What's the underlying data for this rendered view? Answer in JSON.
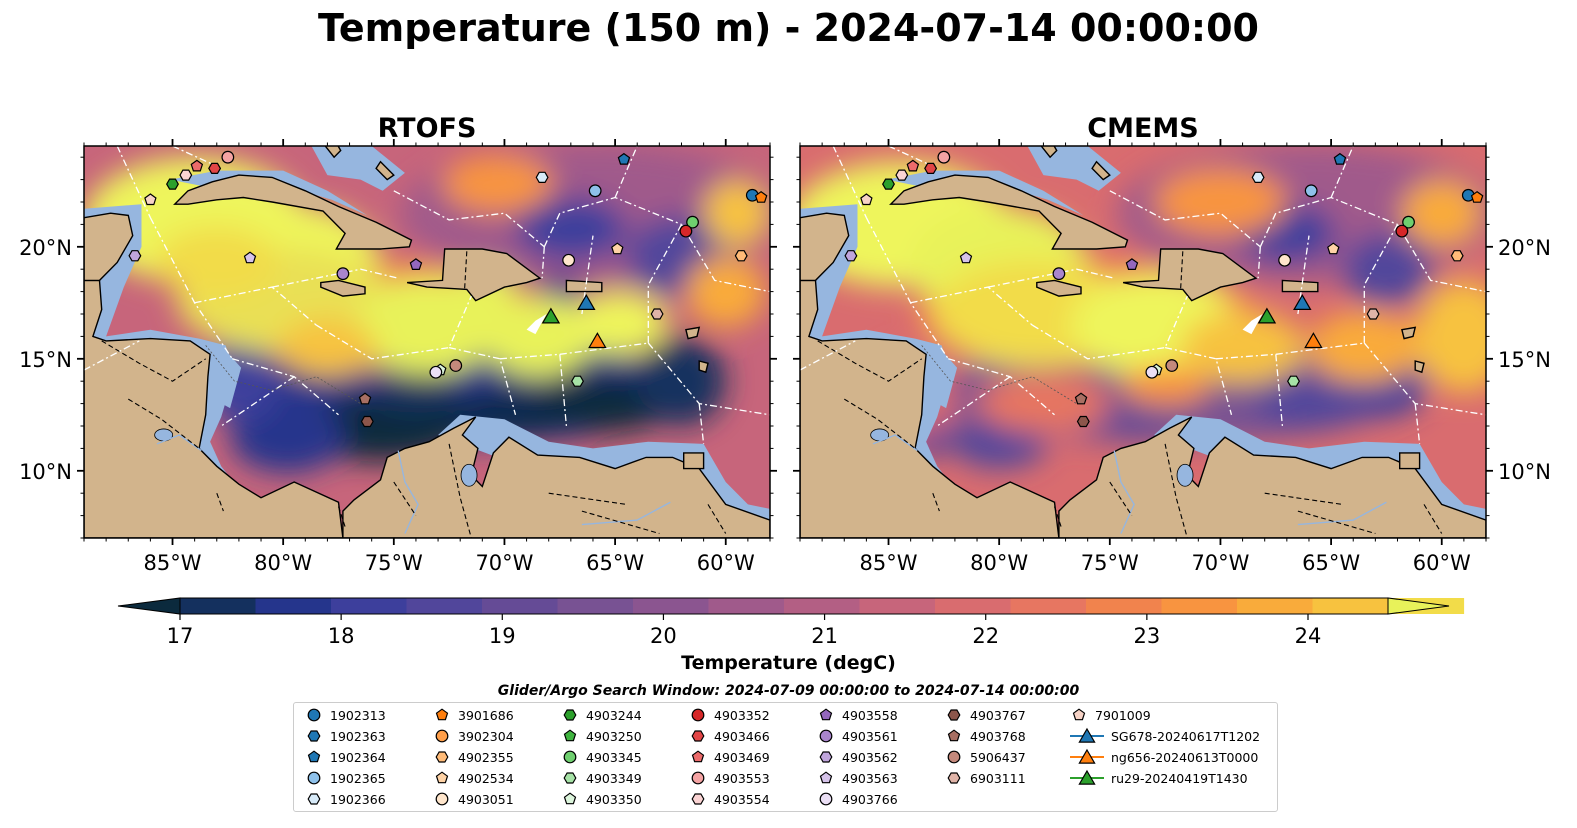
{
  "figure": {
    "title": "Temperature (150 m) - 2024-07-14 00:00:00",
    "search_window": "Glider/Argo Search Window: 2024-07-09 00:00:00 to 2024-07-14 00:00:00"
  },
  "chart_data": [
    {
      "type": "heatmap",
      "title": "RTOFS",
      "xlim": [
        -89,
        -58
      ],
      "ylim": [
        7,
        24.5
      ],
      "xticks": [
        "85°W",
        "80°W",
        "75°W",
        "70°W",
        "65°W",
        "60°W"
      ],
      "yticks": [
        "20°N",
        "15°N",
        "10°N"
      ],
      "ytick_side": "left"
    },
    {
      "type": "heatmap",
      "title": "CMEMS",
      "xlim": [
        -89,
        -58
      ],
      "ylim": [
        7,
        24.5
      ],
      "xticks": [
        "85°W",
        "80°W",
        "75°W",
        "70°W",
        "65°W",
        "60°W"
      ],
      "yticks": [
        "20°N",
        "15°N",
        "10°N"
      ],
      "ytick_side": "right"
    }
  ],
  "colorbar": {
    "label": "Temperature (degC)",
    "range": [
      16.5,
      24.5
    ],
    "ticks": [
      "17",
      "18",
      "19",
      "20",
      "21",
      "22",
      "23",
      "24"
    ],
    "colors": [
      "#0b2a3d",
      "#14305e",
      "#25358c",
      "#3d3f9c",
      "#51469b",
      "#654b96",
      "#785293",
      "#8b5590",
      "#a05a8b",
      "#b35f84",
      "#c7657b",
      "#d96c6f",
      "#e77661",
      "#f1834d",
      "#f89440",
      "#f9ab3b",
      "#f7c23f",
      "#f2dc49",
      "#e8f25a"
    ],
    "extend": "both"
  },
  "legend": {
    "columns": [
      [
        {
          "label": "1902313",
          "shape": "circle",
          "color": "#1f77b4"
        },
        {
          "label": "1902363",
          "shape": "hexagon",
          "color": "#1f77b4"
        },
        {
          "label": "1902364",
          "shape": "pentagon",
          "color": "#1f77b4"
        },
        {
          "label": "1902365",
          "shape": "circle",
          "color": "#8ec1ea"
        },
        {
          "label": "1902366",
          "shape": "hexagon",
          "color": "#d7eaf8"
        }
      ],
      [
        {
          "label": "3901686",
          "shape": "pentagon",
          "color": "#ff7f0e"
        },
        {
          "label": "3902304",
          "shape": "circle",
          "color": "#ff9f4a"
        },
        {
          "label": "4902355",
          "shape": "hexagon",
          "color": "#ffbb78"
        },
        {
          "label": "4902534",
          "shape": "pentagon",
          "color": "#ffd3a6"
        },
        {
          "label": "4903051",
          "shape": "circle",
          "color": "#ffe6cc"
        }
      ],
      [
        {
          "label": "4903244",
          "shape": "hexagon",
          "color": "#2ca02c"
        },
        {
          "label": "4903250",
          "shape": "pentagon",
          "color": "#3fb43f"
        },
        {
          "label": "4903345",
          "shape": "circle",
          "color": "#6fcf6f"
        },
        {
          "label": "4903349",
          "shape": "hexagon",
          "color": "#a6e2a6"
        },
        {
          "label": "4903350",
          "shape": "pentagon",
          "color": "#dcf5dc"
        }
      ],
      [
        {
          "label": "4903352",
          "shape": "circle",
          "color": "#d62728"
        },
        {
          "label": "4903466",
          "shape": "hexagon",
          "color": "#e24546"
        },
        {
          "label": "4903469",
          "shape": "pentagon",
          "color": "#ec6b6b"
        },
        {
          "label": "4903553",
          "shape": "circle",
          "color": "#f4a3a3"
        },
        {
          "label": "4903554",
          "shape": "hexagon",
          "color": "#fad3d3"
        }
      ],
      [
        {
          "label": "4903558",
          "shape": "pentagon",
          "color": "#9467bd"
        },
        {
          "label": "4903561",
          "shape": "circle",
          "color": "#a985cc"
        },
        {
          "label": "4903562",
          "shape": "hexagon",
          "color": "#c0a5dc"
        },
        {
          "label": "4903563",
          "shape": "pentagon",
          "color": "#d6c3ea"
        },
        {
          "label": "4903766",
          "shape": "circle",
          "color": "#ebdff5"
        }
      ],
      [
        {
          "label": "4903767",
          "shape": "hexagon",
          "color": "#8c564b"
        },
        {
          "label": "4903768",
          "shape": "pentagon",
          "color": "#a86f63"
        },
        {
          "label": "5906437",
          "shape": "circle",
          "color": "#c4897c"
        },
        {
          "label": "6903111",
          "shape": "hexagon",
          "color": "#e0b4a8"
        }
      ],
      [
        {
          "label": "7901009",
          "shape": "pentagon",
          "color": "#f7d3c6"
        },
        {
          "label": "SG678-20240617T1202",
          "shape": "triangle-line",
          "color": "#1f77b4"
        },
        {
          "label": "ng656-20240613T0000",
          "shape": "triangle-line",
          "color": "#ff7f0e"
        },
        {
          "label": "ru29-20240419T1430",
          "shape": "triangle-line",
          "color": "#2ca02c"
        }
      ]
    ]
  },
  "observations": [
    {
      "id": "1902313",
      "lon": -58.8,
      "lat": 22.3
    },
    {
      "id": "1902364",
      "lon": -64.6,
      "lat": 23.9
    },
    {
      "id": "1902365",
      "lon": -65.9,
      "lat": 22.5
    },
    {
      "id": "1902366",
      "lon": -68.3,
      "lat": 23.1
    },
    {
      "id": "3901686",
      "lon": -58.4,
      "lat": 22.2
    },
    {
      "id": "4902355",
      "lon": -59.3,
      "lat": 19.6
    },
    {
      "id": "4902534",
      "lon": -64.9,
      "lat": 19.9
    },
    {
      "id": "4903051",
      "lon": -67.1,
      "lat": 19.4
    },
    {
      "id": "4903244",
      "lon": -85.0,
      "lat": 22.8
    },
    {
      "id": "4903345",
      "lon": -61.5,
      "lat": 21.1
    },
    {
      "id": "4903349",
      "lon": -66.7,
      "lat": 14.0
    },
    {
      "id": "4903350",
      "lon": -72.9,
      "lat": 14.5
    },
    {
      "id": "4903352",
      "lon": -61.8,
      "lat": 20.7
    },
    {
      "id": "4903466",
      "lon": -83.1,
      "lat": 23.5
    },
    {
      "id": "4903469",
      "lon": -83.9,
      "lat": 23.6
    },
    {
      "id": "4903553",
      "lon": -82.5,
      "lat": 24.0
    },
    {
      "id": "4903554",
      "lon": -84.4,
      "lat": 23.2
    },
    {
      "id": "4903558",
      "lon": -74.0,
      "lat": 19.2
    },
    {
      "id": "4903561",
      "lon": -77.3,
      "lat": 18.8
    },
    {
      "id": "4903562",
      "lon": -86.7,
      "lat": 19.6
    },
    {
      "id": "4903563",
      "lon": -81.5,
      "lat": 19.5
    },
    {
      "id": "4903766",
      "lon": -73.1,
      "lat": 14.4
    },
    {
      "id": "4903767",
      "lon": -76.2,
      "lat": 12.2
    },
    {
      "id": "4903768",
      "lon": -76.3,
      "lat": 13.2
    },
    {
      "id": "5906437",
      "lon": -72.2,
      "lat": 14.7
    },
    {
      "id": "6903111",
      "lon": -63.1,
      "lat": 17.0
    },
    {
      "id": "7901009",
      "lon": -86.0,
      "lat": 22.1
    },
    {
      "id": "SG678-20240617T1202",
      "lon": -66.3,
      "lat": 17.5
    },
    {
      "id": "ng656-20240613T0000",
      "lon": -65.8,
      "lat": 15.8
    },
    {
      "id": "ru29-20240419T1430",
      "lon": -67.9,
      "lat": 16.9
    }
  ]
}
